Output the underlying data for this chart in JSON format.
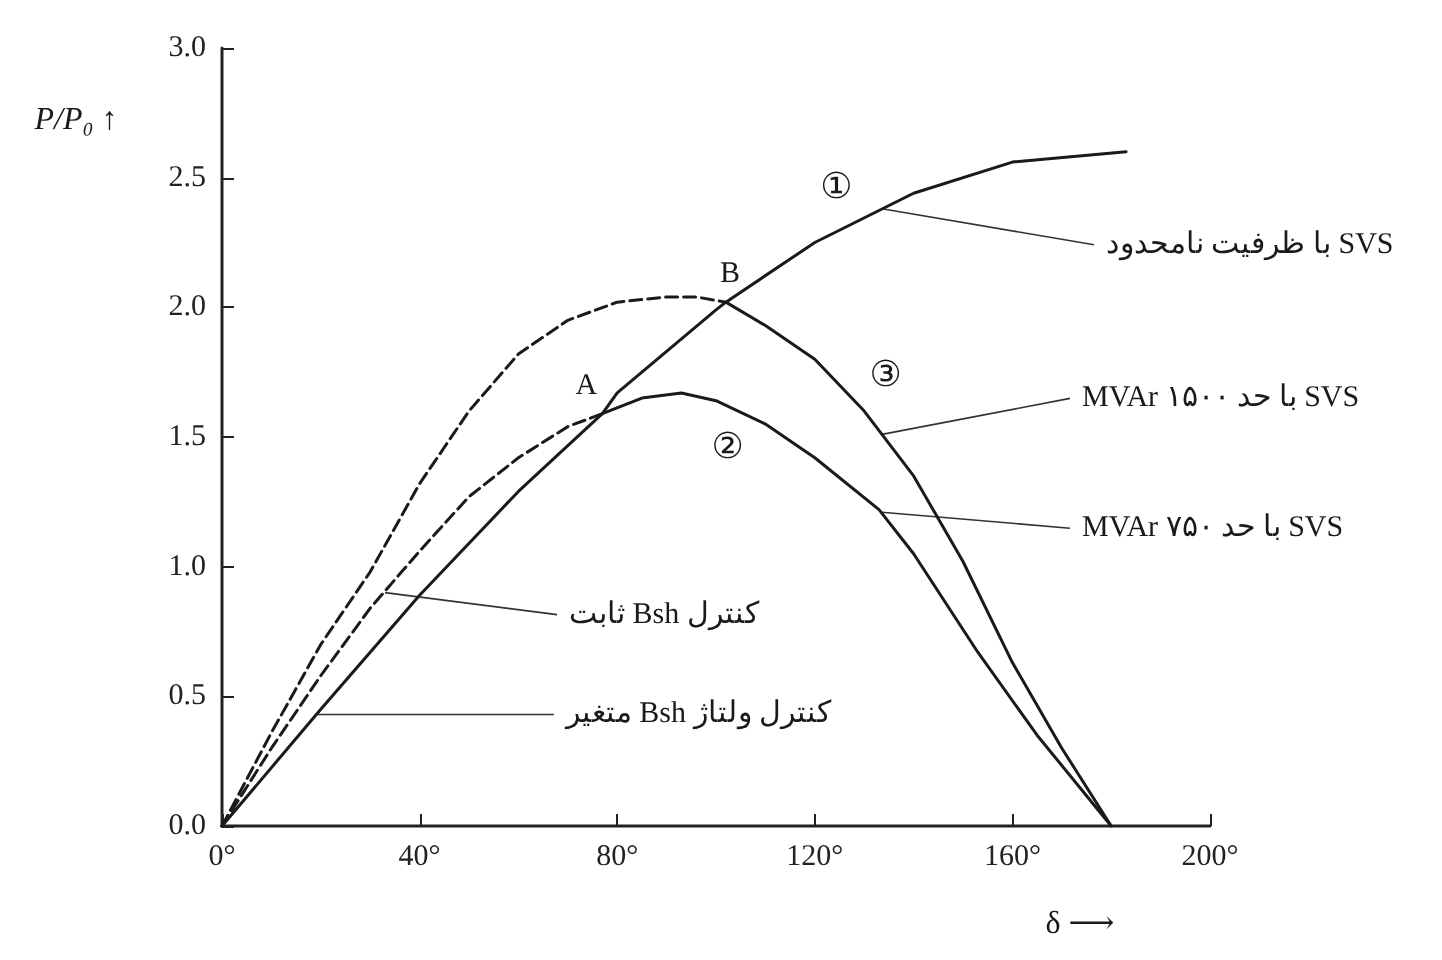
{
  "chart_data": {
    "type": "line",
    "xlabel": "δ ⟶",
    "ylabel": "P/P₀ ↑",
    "xlim": [
      0,
      200
    ],
    "ylim": [
      0,
      3
    ],
    "xticks": [
      {
        "value": 0,
        "label": "0°"
      },
      {
        "value": 40,
        "label": "40°"
      },
      {
        "value": 80,
        "label": "80°"
      },
      {
        "value": 120,
        "label": "120°"
      },
      {
        "value": 160,
        "label": "160°"
      },
      {
        "value": 200,
        "label": "200°"
      }
    ],
    "yticks": [
      {
        "value": 0,
        "label": "0.0"
      },
      0.5,
      {
        "value": 1,
        "label": "1.0"
      },
      1.5,
      {
        "value": 2,
        "label": "2.0"
      },
      2.5,
      {
        "value": 3,
        "label": "3.0"
      }
    ],
    "grid": false,
    "marker": "none",
    "series": [
      {
        "color": "#1a1a1a",
        "line_style": "solid",
        "x": [
          0,
          20,
          40,
          60,
          77,
          80,
          100,
          102,
          120,
          140,
          160,
          183
        ],
        "values": [
          0,
          0.45,
          0.89,
          1.29,
          1.59,
          1.67,
          1.99,
          2.02,
          2.25,
          2.44,
          2.56,
          2.6
        ]
      },
      {
        "color": "#1a1a1a",
        "line_style": "solid",
        "x": [
          77,
          85,
          93,
          100,
          110,
          120,
          133,
          140,
          153,
          165,
          180
        ],
        "values": [
          1.59,
          1.65,
          1.67,
          1.64,
          1.55,
          1.42,
          1.22,
          1.05,
          0.67,
          0.35,
          0
        ]
      },
      {
        "color": "#1a1a1a",
        "line_style": "solid",
        "x": [
          102,
          110,
          120,
          130,
          140,
          150,
          160,
          170,
          180
        ],
        "values": [
          2.02,
          1.93,
          1.8,
          1.6,
          1.35,
          1.02,
          0.63,
          0.3,
          0
        ]
      },
      {
        "color": "#1a1a1a",
        "line_style": "dashed",
        "x": [
          0,
          10,
          20,
          30,
          40,
          50,
          60,
          70,
          80,
          90,
          96,
          102
        ],
        "values": [
          0,
          0.36,
          0.7,
          0.98,
          1.32,
          1.6,
          1.82,
          1.95,
          2.02,
          2.04,
          2.04,
          2.02
        ]
      },
      {
        "color": "#1a1a1a",
        "line_style": "dashed",
        "x": [
          0,
          10,
          20,
          30,
          40,
          50,
          60,
          70,
          77
        ],
        "values": [
          0,
          0.3,
          0.58,
          0.84,
          1.06,
          1.27,
          1.42,
          1.54,
          1.59
        ]
      }
    ],
    "annotations": [
      {
        "text": "①",
        "x": 126,
        "y": 2.31
      },
      {
        "text": "②",
        "x": 108,
        "y": 1.57
      },
      {
        "text": "③",
        "x": 123,
        "y": 1.74
      },
      {
        "text": "A",
        "x": 77,
        "y": 1.59
      },
      {
        "text": "B",
        "x": 102,
        "y": 2.02
      },
      {
        "text": "SVS با ظرفیت نامحدود",
        "x": 133.6,
        "y": 2.38
      },
      {
        "text": "SVS با حد ۱۵۰۰ MVAr",
        "x": 133.6,
        "y": 1.51
      },
      {
        "text": "SVS با حد ۷۵۰ MVAr",
        "x": 133.6,
        "y": 1.21
      },
      {
        "text": "کنترل Bsh ثابت",
        "x": 33,
        "y": 0.9
      },
      {
        "text": "کنترل ولتاژ Bsh متغیر",
        "x": 19,
        "y": 0.43
      }
    ]
  }
}
